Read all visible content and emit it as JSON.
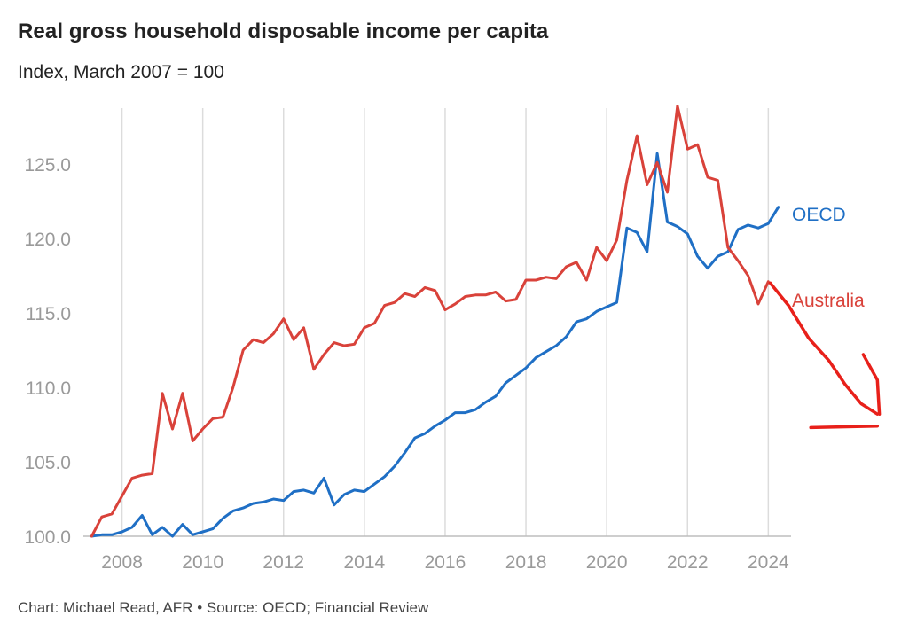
{
  "chart_data": {
    "type": "line",
    "title": "Real gross household disposable income per capita",
    "subtitle": "Index, March 2007 = 100",
    "footer": "Chart: Michael Read, AFR • Source: OECD; Financial Review",
    "xlabel": "",
    "ylabel": "",
    "xlim": [
      2007.0,
      2024.6
    ],
    "ylim": [
      100,
      128.5
    ],
    "x_ticks": [
      2008,
      2010,
      2012,
      2014,
      2016,
      2018,
      2020,
      2022,
      2024
    ],
    "x_tick_labels": [
      "2008",
      "2010",
      "2012",
      "2014",
      "2016",
      "2018",
      "2020",
      "2022",
      "2024"
    ],
    "y_ticks": [
      100,
      105,
      110,
      115,
      120,
      125
    ],
    "y_tick_labels": [
      "100.0",
      "105.0",
      "110.0",
      "115.0",
      "120.0",
      "125.0"
    ],
    "grid": "vertical",
    "series": [
      {
        "name": "OECD",
        "color": "#1f6fc5",
        "x": [
          2007.25,
          2007.5,
          2007.75,
          2008.0,
          2008.25,
          2008.5,
          2008.75,
          2009.0,
          2009.25,
          2009.5,
          2009.75,
          2010.0,
          2010.25,
          2010.5,
          2010.75,
          2011.0,
          2011.25,
          2011.5,
          2011.75,
          2012.0,
          2012.25,
          2012.5,
          2012.75,
          2013.0,
          2013.25,
          2013.5,
          2013.75,
          2014.0,
          2014.25,
          2014.5,
          2014.75,
          2015.0,
          2015.25,
          2015.5,
          2015.75,
          2016.0,
          2016.25,
          2016.5,
          2016.75,
          2017.0,
          2017.25,
          2017.5,
          2017.75,
          2018.0,
          2018.25,
          2018.5,
          2018.75,
          2019.0,
          2019.25,
          2019.5,
          2019.75,
          2020.0,
          2020.25,
          2020.5,
          2020.75,
          2021.0,
          2021.25,
          2021.5,
          2021.75,
          2022.0,
          2022.25,
          2022.5,
          2022.75,
          2023.0,
          2023.25,
          2023.5,
          2023.75,
          2024.0,
          2024.25
        ],
        "values": [
          100.0,
          100.1,
          100.1,
          100.3,
          100.6,
          101.4,
          100.1,
          100.6,
          100.0,
          100.8,
          100.1,
          100.3,
          100.5,
          101.2,
          101.7,
          101.9,
          102.2,
          102.3,
          102.5,
          102.4,
          103.0,
          103.1,
          102.9,
          103.9,
          102.1,
          102.8,
          103.1,
          103.0,
          103.5,
          104.0,
          104.7,
          105.6,
          106.6,
          106.9,
          107.4,
          107.8,
          108.3,
          108.3,
          108.5,
          109.0,
          109.4,
          110.3,
          110.8,
          111.3,
          112.0,
          112.4,
          112.8,
          113.4,
          114.4,
          114.6,
          115.1,
          115.4,
          115.7,
          120.7,
          120.4,
          119.1,
          125.7,
          121.1,
          120.8,
          120.3,
          118.8,
          118.0,
          118.8,
          119.1,
          120.6,
          120.9,
          120.7,
          121.0,
          122.1
        ]
      },
      {
        "name": "Australia",
        "color": "#d9423a",
        "x": [
          2007.25,
          2007.5,
          2007.75,
          2008.0,
          2008.25,
          2008.5,
          2008.75,
          2009.0,
          2009.25,
          2009.5,
          2009.75,
          2010.0,
          2010.25,
          2010.5,
          2010.75,
          2011.0,
          2011.25,
          2011.5,
          2011.75,
          2012.0,
          2012.25,
          2012.5,
          2012.75,
          2013.0,
          2013.25,
          2013.5,
          2013.75,
          2014.0,
          2014.25,
          2014.5,
          2014.75,
          2015.0,
          2015.25,
          2015.5,
          2015.75,
          2016.0,
          2016.25,
          2016.5,
          2016.75,
          2017.0,
          2017.25,
          2017.5,
          2017.75,
          2018.0,
          2018.25,
          2018.5,
          2018.75,
          2019.0,
          2019.25,
          2019.5,
          2019.75,
          2020.0,
          2020.25,
          2020.5,
          2020.75,
          2021.0,
          2021.25,
          2021.5,
          2021.75,
          2022.0,
          2022.25,
          2022.5,
          2022.75,
          2023.0,
          2023.25,
          2023.5,
          2023.75,
          2024.0
        ],
        "values": [
          100.0,
          101.3,
          101.5,
          102.7,
          103.9,
          104.1,
          104.2,
          109.6,
          107.2,
          109.6,
          106.4,
          107.2,
          107.9,
          108.0,
          110.0,
          112.5,
          113.2,
          113.0,
          113.6,
          114.6,
          113.2,
          114.0,
          111.2,
          112.2,
          113.0,
          112.8,
          112.9,
          114.0,
          114.3,
          115.5,
          115.7,
          116.3,
          116.1,
          116.7,
          116.5,
          115.2,
          115.6,
          116.1,
          116.2,
          116.2,
          116.4,
          115.8,
          115.9,
          117.2,
          117.2,
          117.4,
          117.3,
          118.1,
          118.4,
          117.2,
          119.4,
          118.5,
          119.9,
          123.9,
          126.9,
          123.6,
          125.1,
          123.1,
          128.9,
          126.0,
          126.3,
          124.1,
          123.9,
          119.4,
          118.5,
          117.5,
          115.6,
          117.1
        ]
      }
    ],
    "series_labels": [
      "OECD",
      "Australia"
    ],
    "annotation": {
      "type": "hand-drawn arrow",
      "color": "#e8201a",
      "description_in_data_units": {
        "trend_line": [
          [
            2024.05,
            117.0
          ],
          [
            2024.5,
            115.5
          ],
          [
            2025.0,
            113.3
          ],
          [
            2025.5,
            111.8
          ],
          [
            2025.9,
            110.2
          ],
          [
            2026.3,
            108.9
          ],
          [
            2026.7,
            108.2
          ]
        ],
        "arrowhead_upper": [
          [
            2026.35,
            112.2
          ],
          [
            2026.7,
            110.5
          ],
          [
            2026.75,
            108.2
          ]
        ],
        "arrowhead_lower": [
          [
            2025.05,
            107.3
          ],
          [
            2026.7,
            107.4
          ]
        ]
      }
    }
  }
}
